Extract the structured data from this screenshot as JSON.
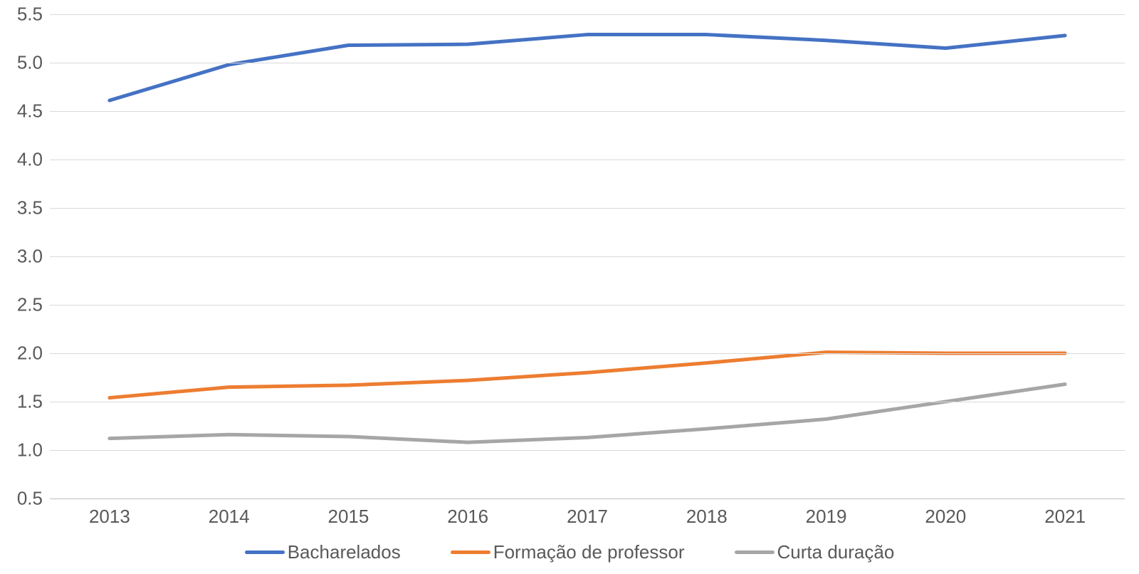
{
  "chart": {
    "type": "line",
    "background_color": "#ffffff",
    "grid_color": "#d9d9d9",
    "axis_line_color": "#bfbfbf",
    "tick_label_color": "#595959",
    "tick_label_fontsize": 26,
    "legend_fontsize": 26,
    "line_width": 5,
    "ylim": [
      0.5,
      5.5
    ],
    "ytick_step": 0.5,
    "yticks": [
      "0.5",
      "1.0",
      "1.5",
      "2.0",
      "2.5",
      "3.0",
      "3.5",
      "4.0",
      "4.5",
      "5.0",
      "5.5"
    ],
    "categories": [
      "2013",
      "2014",
      "2015",
      "2016",
      "2017",
      "2018",
      "2019",
      "2020",
      "2021"
    ],
    "series": [
      {
        "name": "Bacharelados",
        "color": "#4472c4",
        "values": [
          4.61,
          4.98,
          5.18,
          5.19,
          5.29,
          5.29,
          5.23,
          5.15,
          5.28
        ]
      },
      {
        "name": "Formação de professor",
        "color": "#ed7d31",
        "values": [
          1.54,
          1.65,
          1.67,
          1.72,
          1.8,
          1.9,
          2.01,
          2.0,
          2.0
        ]
      },
      {
        "name": "Curta duração",
        "color": "#a6a6a6",
        "values": [
          1.12,
          1.16,
          1.14,
          1.08,
          1.13,
          1.22,
          1.32,
          1.5,
          1.68
        ]
      }
    ]
  }
}
